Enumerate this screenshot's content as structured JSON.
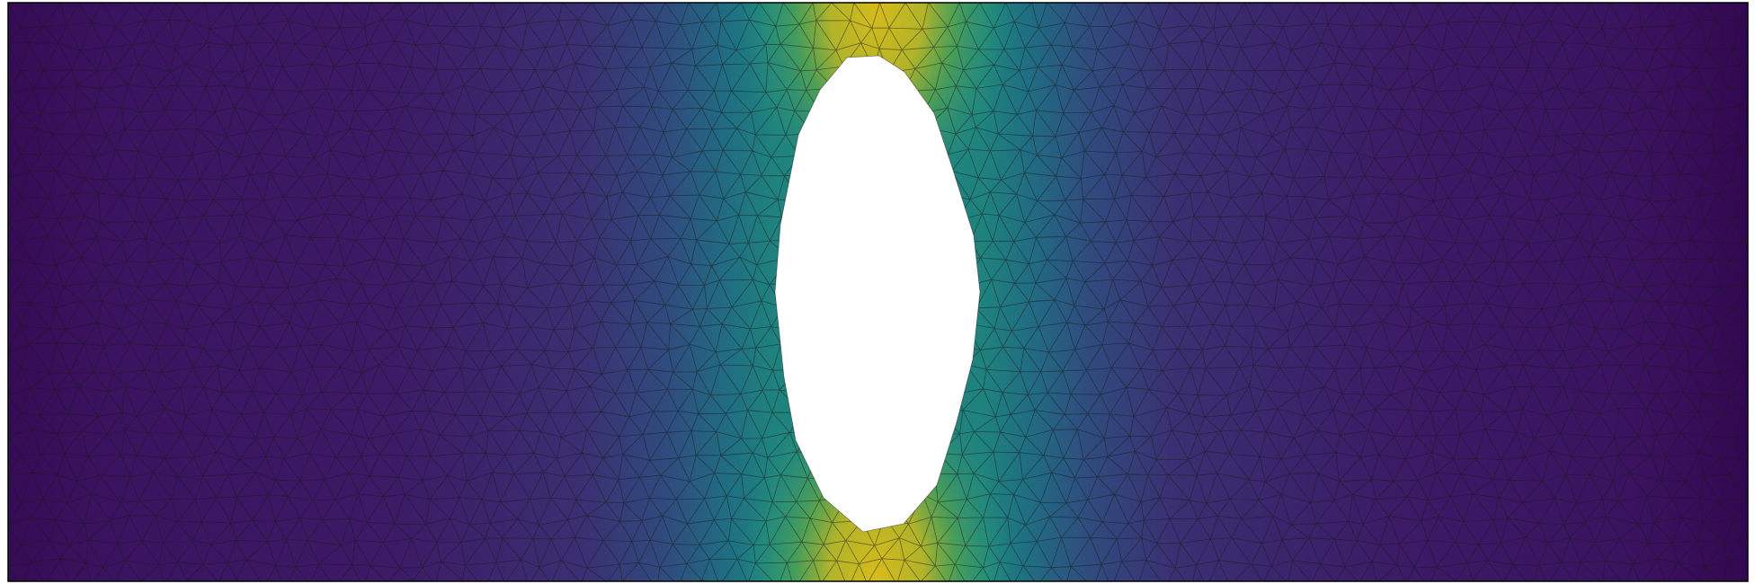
{
  "scene": {
    "subject": "fem-plate-with-elliptical-hole",
    "colormap": "viridis",
    "colors": {
      "low": "#440154",
      "low_mid": "#3b528b",
      "mid": "#21918c",
      "high_mid": "#5ec962",
      "high": "#c8b81e",
      "mesh_edge": "#1a1a1a",
      "hole": "#ffffff",
      "border": "#000000"
    },
    "field_peak_location": "top-and-bottom-of-hole",
    "mesh_type": "triangular"
  }
}
